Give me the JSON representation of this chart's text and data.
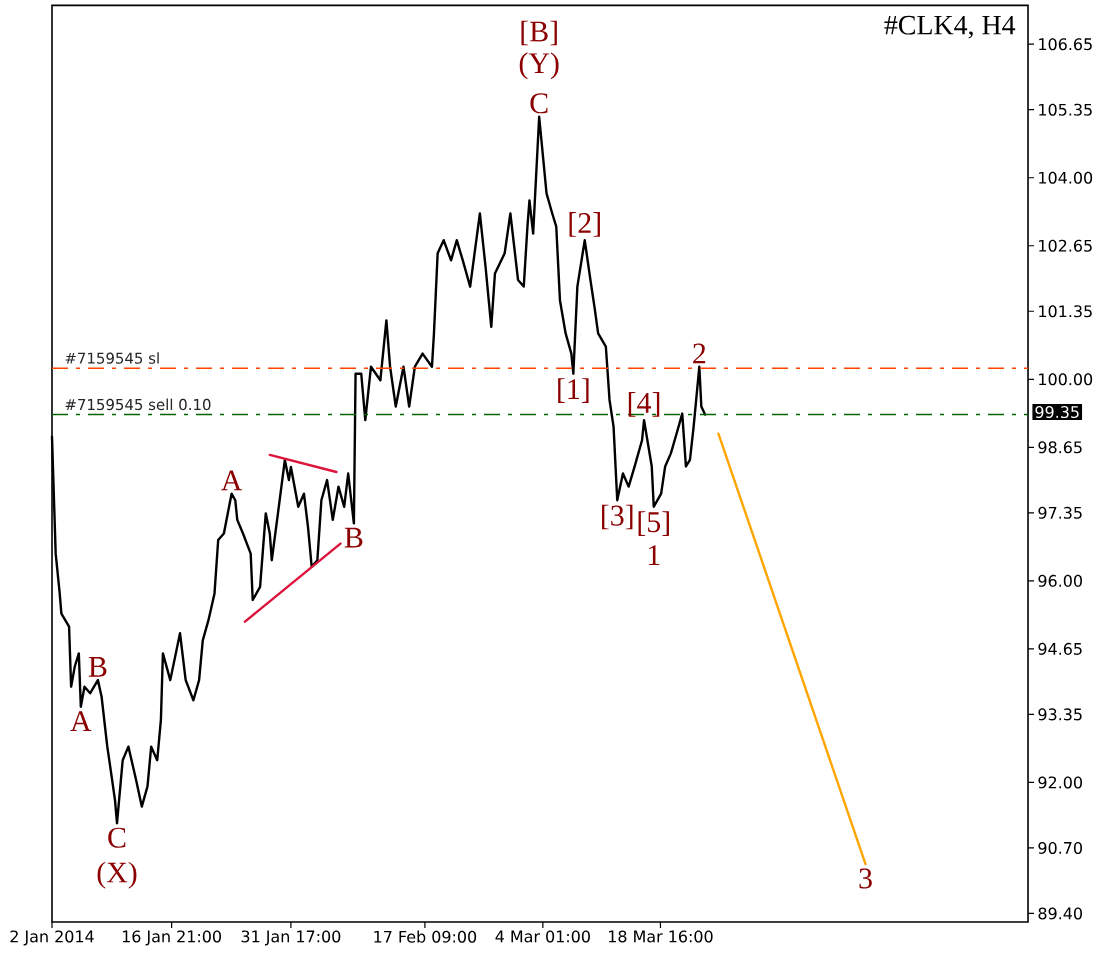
{
  "chart_data": {
    "type": "line",
    "title": "#CLK4, H4",
    "marker": "none",
    "xlim": [
      "2014-01-02T00:00",
      "2014-05-03T09:00"
    ],
    "xticks": [
      {
        "value": "2014-01-02T00:00",
        "label": "2 Jan 2014"
      },
      {
        "value": "2014-01-16T21:00",
        "label": "16 Jan 21:00"
      },
      {
        "value": "2014-01-31T17:00",
        "label": "31 Jan 17:00"
      },
      {
        "value": "2014-02-17T09:00",
        "label": "17 Feb 09:00"
      },
      {
        "value": "2014-03-04T01:00",
        "label": "4 Mar 01:00"
      },
      {
        "value": "2014-03-18T16:00",
        "label": "18 Mar 16:00"
      }
    ],
    "ylim": [
      89.23,
      107.42
    ],
    "yticks": [
      {
        "value": 89.4,
        "label": "89.40"
      },
      {
        "value": 90.7,
        "label": "90.70"
      },
      {
        "value": 92,
        "label": "92.00"
      },
      93.35,
      94.65,
      {
        "value": 96,
        "label": "96.00"
      },
      97.35,
      98.65,
      {
        "value": 100,
        "label": "100.00"
      },
      101.35,
      102.65,
      {
        "value": 104,
        "label": "104.00"
      },
      105.35,
      106.65
    ],
    "series": [
      {
        "color": "#000000",
        "x": [
          "2014-01-02T00:00",
          "2014-01-02T11:00",
          "2014-01-02T23:00",
          "2014-01-03T04:00",
          "2014-01-04T03:00",
          "2014-01-04T09:00",
          "2014-01-04T20:00",
          "2014-01-05T08:00",
          "2014-01-05T14:00",
          "2014-01-06T01:00",
          "2014-01-06T18:00",
          "2014-01-07T17:00",
          "2014-01-08T04:00",
          "2014-01-08T21:00",
          "2014-01-09T03:00",
          "2014-01-09T20:00",
          "2014-01-10T02:00",
          "2014-01-10T19:00",
          "2014-01-11T12:00",
          "2014-01-12T11:00",
          "2014-01-13T04:00",
          "2014-01-13T21:00",
          "2014-01-14T08:00",
          "2014-01-15T02:00",
          "2014-01-15T13:00",
          "2014-01-15T19:00",
          "2014-01-16T17:00",
          "2014-01-17T22:00",
          "2014-01-18T15:00",
          "2014-01-19T14:00",
          "2014-01-20T07:00",
          "2014-01-20T18:00",
          "2014-01-21T11:00",
          "2014-01-22T05:00",
          "2014-01-22T16:00",
          "2014-01-23T09:00",
          "2014-01-24T08:00",
          "2014-01-24T19:00",
          "2014-01-25T01:00",
          "2014-01-25T18:00",
          "2014-01-26T17:00",
          "2014-01-26T23:00",
          "2014-01-27T21:00",
          "2014-01-28T14:00",
          "2014-01-29T02:00",
          "2014-01-29T08:00",
          "2014-01-30T01:00",
          "2014-01-30T23:00",
          "2014-01-31T11:00",
          "2014-01-31T17:00",
          "2014-02-01T15:00",
          "2014-02-02T08:00",
          "2014-02-02T20:00",
          "2014-02-03T07:00",
          "2014-02-04T00:00",
          "2014-02-04T12:00",
          "2014-02-05T05:00",
          "2014-02-05T22:00",
          "2014-02-06T15:00",
          "2014-02-07T08:00",
          "2014-02-07T20:00",
          "2014-02-08T13:00",
          "2014-02-08T18:00",
          "2014-02-09T11:00",
          "2014-02-09T23:00",
          "2014-02-10T16:00",
          "2014-02-11T20:00",
          "2014-02-12T14:00",
          "2014-02-13T01:00",
          "2014-02-13T18:00",
          "2014-02-14T17:00",
          "2014-02-15T10:00",
          "2014-02-16T03:00",
          "2014-02-17T02:00",
          "2014-02-18T06:00",
          "2014-02-18T12:00",
          "2014-02-18T23:00",
          "2014-02-19T17:00",
          "2014-02-20T15:00",
          "2014-02-21T08:00",
          "2014-02-22T02:00",
          "2014-02-23T00:00",
          "2014-02-24T05:00",
          "2014-02-24T22:00",
          "2014-02-25T15:00",
          "2014-02-26T02:00",
          "2014-02-27T07:00",
          "2014-02-28T00:00",
          "2014-02-28T23:00",
          "2014-03-01T16:00",
          "2014-03-02T03:00",
          "2014-03-02T09:00",
          "2014-03-02T20:00",
          "2014-03-03T14:00",
          "2014-03-04T12:00",
          "2014-03-05T05:00",
          "2014-03-05T17:00",
          "2014-03-06T04:00",
          "2014-03-06T21:00",
          "2014-03-07T14:00",
          "2014-03-07T20:00",
          "2014-03-08T08:00",
          "2014-03-09T06:00",
          "2014-03-09T23:00",
          "2014-03-10T11:00",
          "2014-03-10T22:00",
          "2014-03-11T21:00",
          "2014-03-12T08:00",
          "2014-03-12T20:00",
          "2014-03-13T07:00",
          "2014-03-14T00:00",
          "2014-03-14T17:00",
          "2014-03-15T11:00",
          "2014-03-16T09:00",
          "2014-03-16T15:00",
          "2014-03-17T14:00",
          "2014-03-17T20:00",
          "2014-03-18T18:00",
          "2014-03-19T06:00",
          "2014-03-19T23:00",
          "2014-03-20T16:00",
          "2014-03-21T09:00",
          "2014-03-21T20:00",
          "2014-03-22T08:00",
          "2014-03-22T19:00",
          "2014-03-23T12:00",
          "2014-03-23T18:00",
          "2014-03-24T05:00"
        ],
        "values": [
          98.86,
          96.54,
          95.75,
          95.35,
          95.09,
          93.9,
          94.3,
          94.56,
          93.5,
          93.9,
          93.77,
          94.03,
          93.7,
          92.71,
          92.44,
          91.65,
          91.19,
          92.44,
          92.71,
          92.05,
          91.52,
          91.92,
          92.71,
          92.44,
          93.24,
          94.56,
          94.03,
          94.96,
          94.03,
          93.63,
          94.03,
          94.82,
          95.22,
          95.75,
          96.81,
          96.94,
          97.73,
          97.6,
          97.21,
          96.94,
          96.54,
          95.62,
          95.88,
          97.34,
          96.94,
          96.41,
          97.27,
          98.4,
          98.0,
          98.26,
          97.47,
          97.73,
          97.07,
          96.28,
          96.41,
          97.6,
          98.0,
          97.21,
          97.87,
          97.47,
          98.13,
          97.14,
          100.11,
          100.11,
          99.19,
          100.25,
          99.98,
          101.17,
          100.25,
          99.46,
          100.25,
          99.46,
          100.25,
          100.51,
          100.25,
          100.91,
          102.5,
          102.76,
          102.36,
          102.76,
          102.36,
          101.84,
          103.29,
          102.23,
          101.04,
          102.1,
          102.5,
          103.29,
          101.97,
          101.84,
          103.03,
          103.55,
          102.89,
          105.21,
          103.69,
          103.29,
          103.03,
          101.57,
          100.91,
          100.51,
          100.11,
          101.84,
          102.76,
          101.97,
          101.44,
          100.91,
          100.65,
          99.59,
          99.06,
          97.6,
          98.13,
          97.87,
          98.27,
          98.79,
          99.19,
          98.27,
          97.47,
          97.73,
          98.27,
          98.53,
          98.92,
          99.32,
          98.27,
          98.4,
          99.06,
          100.25,
          99.46,
          99.3
        ]
      },
      {
        "color": "#dc143c",
        "x": [
          "2014-01-26T00:00",
          "2014-02-06T21:00"
        ],
        "values": [
          95.19,
          96.74
        ]
      },
      {
        "color": "#dc143c",
        "x": [
          "2014-01-29T02:00",
          "2014-02-06T09:00"
        ],
        "values": [
          98.5,
          98.16
        ]
      },
      {
        "color": "#ffa500",
        "x": [
          "2014-03-25T21:00",
          "2014-04-13T04:00"
        ],
        "values": [
          98.92,
          90.38
        ]
      }
    ],
    "ref_lines": [
      {
        "axis": "y",
        "value": 100.22,
        "label": "#7159545 sl",
        "color": "#ff4500",
        "line_style": "dashdot"
      },
      {
        "axis": "y",
        "value": 99.3,
        "label": "#7159545 sell 0.10",
        "color": "#006400",
        "line_style": "dashdot"
      }
    ],
    "annotations": [
      {
        "text": "[B]",
        "x": "2014-03-03T14:00",
        "y": 105.21
      },
      {
        "text": "(Y)",
        "x": "2014-03-03T14:00",
        "y": 105.21
      },
      {
        "text": "C",
        "x": "2014-03-03T14:00",
        "y": 105.21
      },
      {
        "text": "[2]",
        "x": "2014-03-09T06:00",
        "y": 102.76
      },
      {
        "text": "[1]",
        "x": "2014-03-07T20:00",
        "y": 100.11
      },
      {
        "text": "[4]",
        "x": "2014-03-16T15:00",
        "y": 99.19
      },
      {
        "text": "[3]",
        "x": "2014-03-13T07:00",
        "y": 97.6
      },
      {
        "text": "[5]",
        "x": "2014-03-17T20:00",
        "y": 97.47
      },
      {
        "text": "1",
        "x": "2014-03-17T20:00",
        "y": 97.47
      },
      {
        "text": "2",
        "x": "2014-03-23T12:00",
        "y": 100.25
      },
      {
        "text": "3",
        "x": "2014-04-13T04:00",
        "y": 90.38
      },
      {
        "text": "A",
        "x": "2014-01-24T08:00",
        "y": 97.73
      },
      {
        "text": "B",
        "x": "2014-02-08T13:00",
        "y": 97.14
      },
      {
        "text": "B",
        "x": "2014-01-07T17:00",
        "y": 94.03
      },
      {
        "text": "A",
        "x": "2014-01-05T14:00",
        "y": 93.5
      },
      {
        "text": "C",
        "x": "2014-01-10T02:00",
        "y": 91.19
      },
      {
        "text": "(X)",
        "x": "2014-01-10T02:00",
        "y": 91.19
      },
      {
        "text": "99.35",
        "y": 99.35
      }
    ]
  }
}
